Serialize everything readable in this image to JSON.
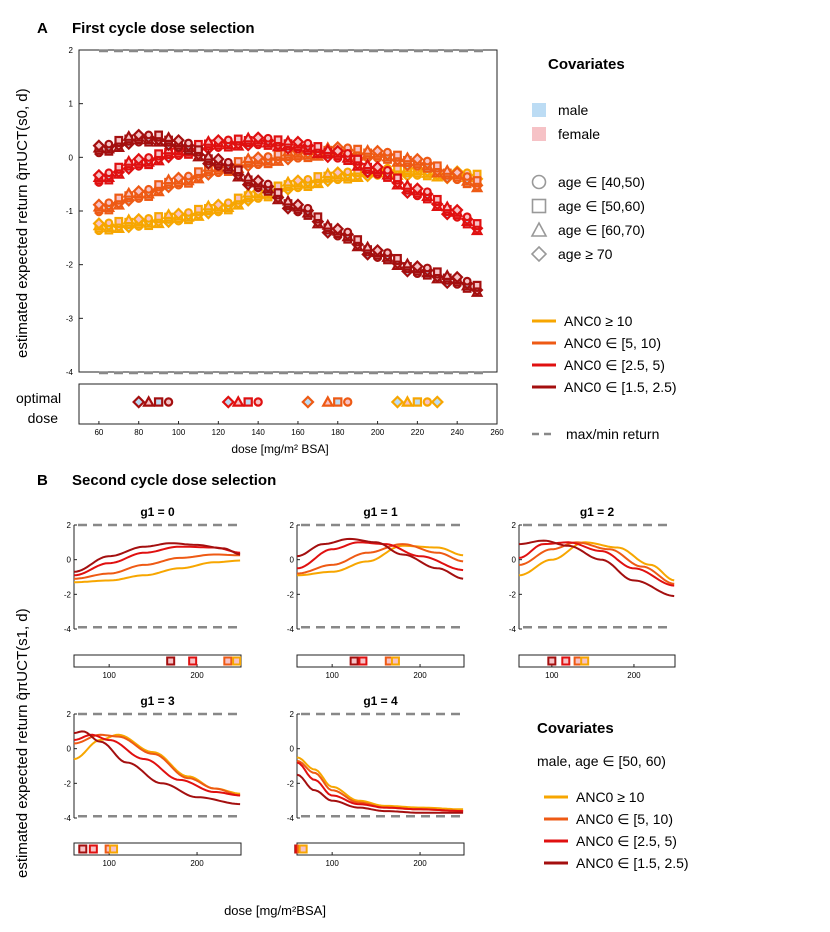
{
  "panelA": {
    "letter": "A",
    "title": "First cycle dose selection"
  },
  "panelB": {
    "letter": "B",
    "title": "Second cycle dose selection"
  },
  "colors": {
    "anc_high": "#f7a600",
    "anc_mid": "#ee5a14",
    "anc_low": "#e01010",
    "anc_vlow": "#a40f0f",
    "male": "#bcdcf4",
    "female": "#f6c2c6",
    "grey": "#999999",
    "dash": "#888888"
  },
  "labels": {
    "ylabelA": "estimated expected return  q̂πUCT(s0, d)",
    "ylabelB": "estimated expected return  q̂πUCT(s1, d)",
    "optimal_dose": "optimal dose",
    "optimal_1": "optimal",
    "optimal_2": "dose",
    "xlabelA": "dose [mg/m² BSA]",
    "xlabelB": "dose [mg/m²BSA]"
  },
  "legendA": {
    "title": "Covariates",
    "sex": [
      {
        "label": "male",
        "color": "#bcdcf4"
      },
      {
        "label": "female",
        "color": "#f6c2c6"
      }
    ],
    "age": [
      {
        "marker": "circle",
        "label": "age ∈ [40,50)"
      },
      {
        "marker": "square",
        "label": "age ∈ [50,60)"
      },
      {
        "marker": "triangle",
        "label": "age ∈ [60,70)"
      },
      {
        "marker": "diamond",
        "label": "age ≥ 70"
      }
    ],
    "anc": [
      {
        "label": "ANC0 ≥ 10",
        "color": "#f7a600"
      },
      {
        "label": "ANC0 ∈ [5, 10)",
        "color": "#ee5a14"
      },
      {
        "label": "ANC0 ∈ [2.5, 5)",
        "color": "#e01010"
      },
      {
        "label": "ANC0 ∈ [1.5, 2.5)",
        "color": "#a40f0f"
      }
    ],
    "maxmin": "max/min return"
  },
  "legendB": {
    "title": "Covariates",
    "subtitle": "male, age ∈ [50, 60)",
    "anc": [
      {
        "label": "ANC0 ≥ 10",
        "color": "#f7a600"
      },
      {
        "label": "ANC0 ∈ [5, 10)",
        "color": "#ee5a14"
      },
      {
        "label": "ANC0 ∈ [2.5, 5)",
        "color": "#e01010"
      },
      {
        "label": "ANC0 ∈ [1.5, 2.5)",
        "color": "#a40f0f"
      }
    ]
  },
  "chart_data": [
    {
      "type": "scatter",
      "title": "First cycle dose selection",
      "xlabel": "dose [mg/m² BSA]",
      "ylabel": "estimated expected return q̂πUCT(s0, d)",
      "xlim": [
        50,
        260
      ],
      "ylim": [
        -4,
        2
      ],
      "xticks": [
        60,
        80,
        100,
        120,
        140,
        160,
        180,
        200,
        220,
        240,
        260
      ],
      "yticks": [
        -4,
        -3,
        -2,
        -1,
        0,
        1,
        2
      ],
      "maxmin_return": [
        2,
        -4
      ],
      "series": [
        {
          "name": "ANC0 ≥ 10",
          "x": [
            60,
            80,
            100,
            120,
            140,
            160,
            180,
            200,
            220,
            240,
            250
          ],
          "y": [
            -1.3,
            -1.22,
            -1.12,
            -0.95,
            -0.7,
            -0.5,
            -0.35,
            -0.27,
            -0.27,
            -0.33,
            -0.38
          ]
        },
        {
          "name": "ANC0 ∈ [5, 10)",
          "x": [
            60,
            80,
            100,
            120,
            140,
            160,
            180,
            200,
            220,
            240,
            250
          ],
          "y": [
            -0.95,
            -0.7,
            -0.45,
            -0.22,
            -0.07,
            0.05,
            0.12,
            0.05,
            -0.1,
            -0.35,
            -0.5
          ]
        },
        {
          "name": "ANC0 ∈ [2.5, 5)",
          "x": [
            60,
            80,
            100,
            120,
            140,
            160,
            180,
            200,
            220,
            240,
            250
          ],
          "y": [
            -0.4,
            -0.1,
            0.1,
            0.25,
            0.3,
            0.22,
            0.05,
            -0.25,
            -0.65,
            -1.05,
            -1.3
          ]
        },
        {
          "name": "ANC0 ∈ [1.5, 2.5)",
          "x": [
            60,
            80,
            90,
            100,
            120,
            140,
            160,
            180,
            200,
            220,
            240,
            250
          ],
          "y": [
            0.15,
            0.35,
            0.35,
            0.25,
            -0.1,
            -0.5,
            -0.95,
            -1.4,
            -1.8,
            -2.1,
            -2.3,
            -2.45
          ]
        }
      ],
      "optimal_dose": [
        {
          "anc": "ANC0 ∈ [1.5, 2.5)",
          "doses": [
            80,
            85,
            90,
            95
          ]
        },
        {
          "anc": "ANC0 ∈ [2.5, 5)",
          "doses": [
            125,
            130,
            135,
            140
          ]
        },
        {
          "anc": "ANC0 ∈ [5, 10)",
          "doses": [
            165,
            175,
            180,
            185
          ]
        },
        {
          "anc": "ANC0 ≥ 10",
          "doses": [
            210,
            215,
            220,
            225,
            230
          ]
        }
      ]
    },
    {
      "type": "line",
      "title": "g1 = 0",
      "xlim": [
        60,
        250
      ],
      "ylim": [
        -4,
        2
      ],
      "xticks": [
        100,
        200
      ],
      "yticks": [
        -4,
        -2,
        0,
        2
      ],
      "maxmin_return": [
        2,
        -3.9
      ],
      "series": [
        {
          "name": "ANC0 ≥ 10",
          "x": [
            60,
            100,
            140,
            180,
            220,
            250
          ],
          "y": [
            -1.3,
            -1.2,
            -0.9,
            -0.5,
            -0.15,
            -0.05
          ]
        },
        {
          "name": "ANC0 ∈ [5, 10)",
          "x": [
            60,
            100,
            140,
            180,
            220,
            250
          ],
          "y": [
            -1.1,
            -0.8,
            -0.3,
            0.1,
            0.3,
            0.25
          ]
        },
        {
          "name": "ANC0 ∈ [2.5, 5)",
          "x": [
            60,
            100,
            140,
            180,
            220,
            250
          ],
          "y": [
            -0.9,
            -0.2,
            0.4,
            0.75,
            0.7,
            0.4
          ]
        },
        {
          "name": "ANC0 ∈ [1.5, 2.5)",
          "x": [
            60,
            100,
            140,
            170,
            200,
            230,
            250
          ],
          "y": [
            -0.7,
            0.2,
            0.75,
            0.95,
            0.85,
            0.65,
            0.3
          ]
        }
      ],
      "optimal_dose": [
        {
          "anc": "ANC0 ∈ [1.5, 2.5)",
          "dose": 170
        },
        {
          "anc": "ANC0 ∈ [2.5, 5)",
          "dose": 195
        },
        {
          "anc": "ANC0 ∈ [5, 10)",
          "dose": 235
        },
        {
          "anc": "ANC0 ≥ 10",
          "dose": 245
        }
      ]
    },
    {
      "type": "line",
      "title": "g1 = 1",
      "xlim": [
        60,
        250
      ],
      "ylim": [
        -4,
        2
      ],
      "xticks": [
        100,
        200
      ],
      "yticks": [
        -4,
        -2,
        0,
        2
      ],
      "maxmin_return": [
        2,
        -3.9
      ],
      "series": [
        {
          "name": "ANC0 ≥ 10",
          "x": [
            60,
            100,
            140,
            180,
            220,
            250
          ],
          "y": [
            -0.9,
            -0.7,
            -0.1,
            0.8,
            0.7,
            0.25
          ]
        },
        {
          "name": "ANC0 ∈ [5, 10)",
          "x": [
            60,
            100,
            140,
            180,
            220,
            250
          ],
          "y": [
            -0.8,
            -0.3,
            0.4,
            0.9,
            0.4,
            -0.1
          ]
        },
        {
          "name": "ANC0 ∈ [2.5, 5)",
          "x": [
            60,
            100,
            130,
            160,
            200,
            250
          ],
          "y": [
            -0.5,
            0.6,
            1.0,
            0.9,
            0.2,
            -0.6
          ]
        },
        {
          "name": "ANC0 ∈ [1.5, 2.5)",
          "x": [
            60,
            90,
            120,
            150,
            180,
            220,
            250
          ],
          "y": [
            0.2,
            0.9,
            1.2,
            1.0,
            0.3,
            -0.5,
            -1.1
          ]
        }
      ],
      "optimal_dose": [
        {
          "anc": "ANC0 ∈ [1.5, 2.5)",
          "dose": 125
        },
        {
          "anc": "ANC0 ∈ [2.5, 5)",
          "dose": 135
        },
        {
          "anc": "ANC0 ∈ [5, 10)",
          "dose": 165
        },
        {
          "anc": "ANC0 ≥ 10",
          "dose": 172
        }
      ]
    },
    {
      "type": "line",
      "title": "g1 = 2",
      "xlim": [
        60,
        250
      ],
      "ylim": [
        -4,
        2
      ],
      "xticks": [
        100,
        200
      ],
      "yticks": [
        -4,
        -2,
        0,
        2
      ],
      "maxmin_return": [
        2,
        -3.9
      ],
      "series": [
        {
          "name": "ANC0 ≥ 10",
          "x": [
            60,
            100,
            140,
            180,
            220,
            250
          ],
          "y": [
            -0.9,
            0.0,
            1.0,
            0.7,
            -0.3,
            -1.2
          ]
        },
        {
          "name": "ANC0 ∈ [5, 10)",
          "x": [
            60,
            100,
            130,
            170,
            210,
            250
          ],
          "y": [
            -0.3,
            0.6,
            1.0,
            0.6,
            -0.4,
            -1.4
          ]
        },
        {
          "name": "ANC0 ∈ [2.5, 5)",
          "x": [
            60,
            90,
            120,
            160,
            200,
            250
          ],
          "y": [
            0.1,
            0.9,
            1.0,
            0.5,
            -0.5,
            -1.5
          ]
        },
        {
          "name": "ANC0 ∈ [1.5, 2.5)",
          "x": [
            60,
            90,
            120,
            160,
            200,
            250
          ],
          "y": [
            0.9,
            1.1,
            0.8,
            0.0,
            -1.2,
            -2.1
          ]
        }
      ],
      "optimal_dose": [
        {
          "anc": "ANC0 ∈ [1.5, 2.5)",
          "dose": 100
        },
        {
          "anc": "ANC0 ∈ [2.5, 5)",
          "dose": 117
        },
        {
          "anc": "ANC0 ∈ [5, 10)",
          "dose": 132
        },
        {
          "anc": "ANC0 ≥ 10",
          "dose": 140
        }
      ]
    },
    {
      "type": "line",
      "title": "g1 = 3",
      "xlim": [
        60,
        250
      ],
      "ylim": [
        -4,
        2
      ],
      "xticks": [
        100,
        200
      ],
      "yticks": [
        -4,
        -2,
        0,
        2
      ],
      "maxmin_return": [
        2,
        -3.9
      ],
      "series": [
        {
          "name": "ANC0 ≥ 10",
          "x": [
            60,
            90,
            110,
            150,
            190,
            220,
            250
          ],
          "y": [
            -0.6,
            0.5,
            0.8,
            -0.2,
            -1.6,
            -2.3,
            -2.6
          ]
        },
        {
          "name": "ANC0 ∈ [5, 10)",
          "x": [
            60,
            90,
            110,
            150,
            190,
            220,
            250
          ],
          "y": [
            0.3,
            0.8,
            0.7,
            -0.3,
            -1.7,
            -2.3,
            -2.7
          ]
        },
        {
          "name": "ANC0 ∈ [2.5, 5)",
          "x": [
            60,
            80,
            100,
            140,
            180,
            220,
            250
          ],
          "y": [
            0.5,
            0.8,
            0.5,
            -0.6,
            -1.8,
            -2.5,
            -2.7
          ]
        },
        {
          "name": "ANC0 ∈ [1.5, 2.5)",
          "x": [
            60,
            70,
            90,
            120,
            160,
            200,
            250
          ],
          "y": [
            0.9,
            1.0,
            0.4,
            -0.8,
            -2.0,
            -2.8,
            -3.2
          ]
        }
      ],
      "optimal_dose": [
        {
          "anc": "ANC0 ∈ [1.5, 2.5)",
          "dose": 70
        },
        {
          "anc": "ANC0 ∈ [2.5, 5)",
          "dose": 82
        },
        {
          "anc": "ANC0 ∈ [5, 10)",
          "dose": 100
        },
        {
          "anc": "ANC0 ≥ 10",
          "dose": 105
        }
      ]
    },
    {
      "type": "line",
      "title": "g1 = 4",
      "xlim": [
        60,
        250
      ],
      "ylim": [
        -4,
        2
      ],
      "xticks": [
        100,
        200
      ],
      "yticks": [
        -4,
        -2,
        0,
        2
      ],
      "maxmin_return": [
        2,
        -3.9
      ],
      "series": [
        {
          "name": "ANC0 ≥ 10",
          "x": [
            60,
            80,
            100,
            130,
            160,
            200,
            250
          ],
          "y": [
            -0.5,
            -1.2,
            -2.2,
            -3.0,
            -3.3,
            -3.4,
            -3.5
          ]
        },
        {
          "name": "ANC0 ∈ [5, 10)",
          "x": [
            60,
            80,
            100,
            130,
            160,
            200,
            250
          ],
          "y": [
            -0.7,
            -1.4,
            -2.4,
            -3.1,
            -3.4,
            -3.5,
            -3.6
          ]
        },
        {
          "name": "ANC0 ∈ [2.5, 5)",
          "x": [
            60,
            80,
            100,
            130,
            160,
            200,
            250
          ],
          "y": [
            -0.8,
            -1.8,
            -2.7,
            -3.2,
            -3.4,
            -3.5,
            -3.6
          ]
        },
        {
          "name": "ANC0 ∈ [1.5, 2.5)",
          "x": [
            60,
            80,
            100,
            130,
            160,
            200,
            250
          ],
          "y": [
            -1.5,
            -2.4,
            -3.0,
            -3.4,
            -3.6,
            -3.7,
            -3.7
          ]
        }
      ],
      "optimal_dose": [
        {
          "anc": "ANC0 ∈ [1.5, 2.5)",
          "dose": 62
        },
        {
          "anc": "ANC0 ∈ [2.5, 5)",
          "dose": 63
        },
        {
          "anc": "ANC0 ∈ [5, 10)",
          "dose": 65
        },
        {
          "anc": "ANC0 ≥ 10",
          "dose": 67
        }
      ]
    }
  ]
}
